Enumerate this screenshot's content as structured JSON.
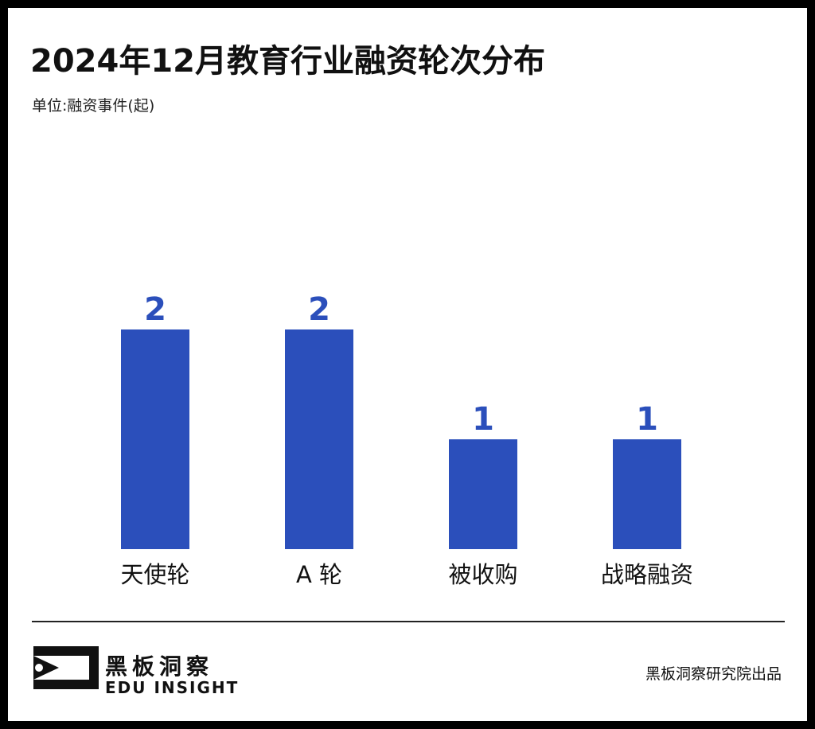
{
  "title": "2024年12月教育行业融资轮次分布",
  "subtitle": "单位:融资事件(起)",
  "colors": {
    "bar": "#2b4fbb",
    "value_label": "#2b4fbb",
    "text": "#111111"
  },
  "chart_data": {
    "type": "bar",
    "categories": [
      "天使轮",
      "A 轮",
      "被收购",
      "战略融资"
    ],
    "values": [
      2,
      2,
      1,
      1
    ],
    "title": "2024年12月教育行业融资轮次分布",
    "ylabel": "单位:融资事件(起)",
    "ylim": [
      0,
      2.3
    ],
    "grid": false,
    "data_labels": true
  },
  "footer": {
    "brand_cn": "黑板洞察",
    "brand_en": "EDU INSIGHT",
    "credit": "黑板洞察研究院出品",
    "logo_icon": "edu-insight-logo-icon"
  }
}
